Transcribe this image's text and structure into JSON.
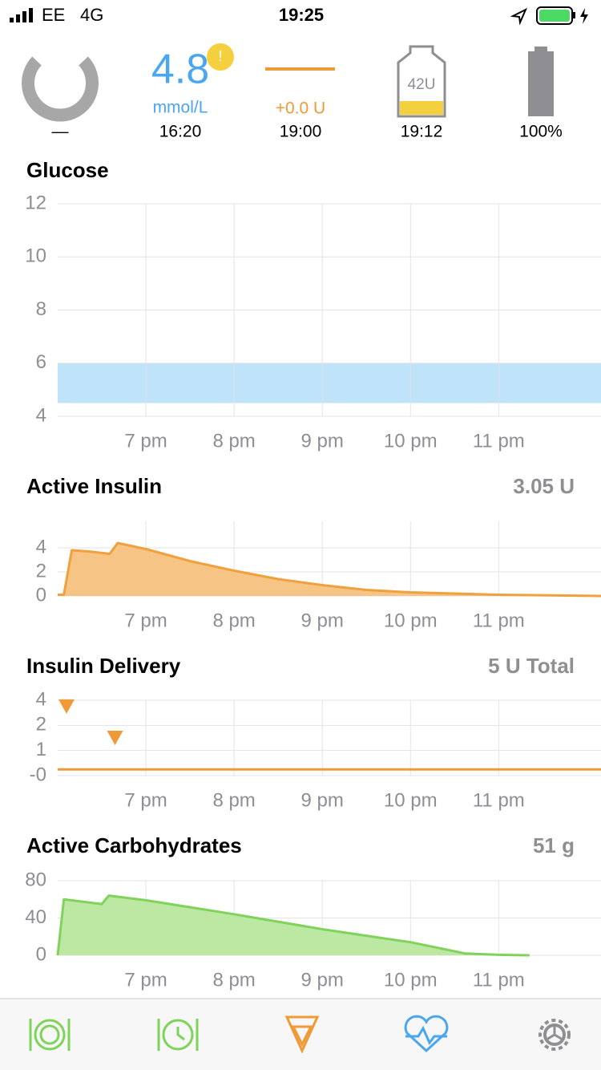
{
  "status_bar": {
    "carrier": "EE",
    "network": "4G",
    "time": "19:25"
  },
  "header": {
    "loop_status": "—",
    "glucose": {
      "value": "4.8",
      "unit": "mmol/L",
      "time": "16:20",
      "alert": "!"
    },
    "temp_basal": {
      "value": "+0.0 U",
      "time": "19:00"
    },
    "reservoir": {
      "value": "42U",
      "time": "19:12"
    },
    "pump_battery": {
      "value": "100%"
    }
  },
  "charts": [
    {
      "type": "range",
      "title": "Glucose",
      "xlim": [
        18,
        24.16
      ],
      "xticks": [
        {
          "value": 19,
          "label": "7 pm"
        },
        {
          "value": 20,
          "label": "8 pm"
        },
        {
          "value": 21,
          "label": "9 pm"
        },
        {
          "value": 22,
          "label": "10 pm"
        },
        {
          "value": 23,
          "label": "11 pm"
        }
      ],
      "ylim": [
        4,
        12
      ],
      "yticks": [
        4,
        6,
        8,
        10,
        12
      ],
      "target_range": [
        4.5,
        6
      ],
      "color": "#bfe3f9",
      "grid": true
    },
    {
      "type": "area",
      "title": "Active Insulin",
      "summary": "3.05 U",
      "xlim": [
        18,
        24.16
      ],
      "xticks": [
        {
          "value": 19,
          "label": "7 pm"
        },
        {
          "value": 20,
          "label": "8 pm"
        },
        {
          "value": 21,
          "label": "9 pm"
        },
        {
          "value": 22,
          "label": "10 pm"
        },
        {
          "value": 23,
          "label": "11 pm"
        }
      ],
      "ylim": [
        0,
        6.2
      ],
      "yticks": [
        0,
        2,
        4
      ],
      "x": [
        18.0,
        18.07,
        18.16,
        18.35,
        18.59,
        18.68,
        19.0,
        19.5,
        20.0,
        20.5,
        21.0,
        21.5,
        22.0,
        22.5,
        23.0,
        24.16
      ],
      "values": [
        0.1,
        0.1,
        3.8,
        3.7,
        3.5,
        4.4,
        3.9,
        2.9,
        2.1,
        1.4,
        0.9,
        0.5,
        0.3,
        0.2,
        0.1,
        0.0
      ],
      "color": "#f0a03c",
      "fill": "#f6c585",
      "grid": true
    },
    {
      "type": "bolus",
      "title": "Insulin Delivery",
      "summary": "5 U Total",
      "xlim": [
        18,
        24.16
      ],
      "xticks": [
        {
          "value": 19,
          "label": "7 pm"
        },
        {
          "value": 20,
          "label": "8 pm"
        },
        {
          "value": 21,
          "label": "9 pm"
        },
        {
          "value": 22,
          "label": "10 pm"
        },
        {
          "value": 23,
          "label": "11 pm"
        }
      ],
      "ylim": [
        0,
        4
      ],
      "yticks": [
        4,
        2,
        1,
        {
          "value": 0,
          "label": "-0"
        }
      ],
      "basal": {
        "x": [
          18,
          24.16
        ],
        "values": [
          0.25,
          0.25
        ]
      },
      "boluses": {
        "x": [
          18.1,
          18.65
        ],
        "values": [
          3.5,
          1.5
        ]
      },
      "color": "#f09a37",
      "grid": true
    },
    {
      "type": "area",
      "title": "Active Carbohydrates",
      "summary": "51 g",
      "xlim": [
        18,
        24.16
      ],
      "xticks": [
        {
          "value": 19,
          "label": "7 pm"
        },
        {
          "value": 20,
          "label": "8 pm"
        },
        {
          "value": 21,
          "label": "9 pm"
        },
        {
          "value": 22,
          "label": "10 pm"
        },
        {
          "value": 23,
          "label": "11 pm"
        }
      ],
      "ylim": [
        0,
        80
      ],
      "yticks": [
        0,
        40,
        80
      ],
      "x": [
        18.0,
        18.07,
        18.5,
        18.58,
        19.0,
        20.0,
        21.0,
        22.0,
        22.62,
        23.0,
        23.35
      ],
      "values": [
        0,
        60,
        55,
        64,
        59,
        44,
        28,
        14,
        2,
        0.5,
        0
      ],
      "color": "#7fd35a",
      "fill": "#bde8a4",
      "grid": true
    }
  ]
}
